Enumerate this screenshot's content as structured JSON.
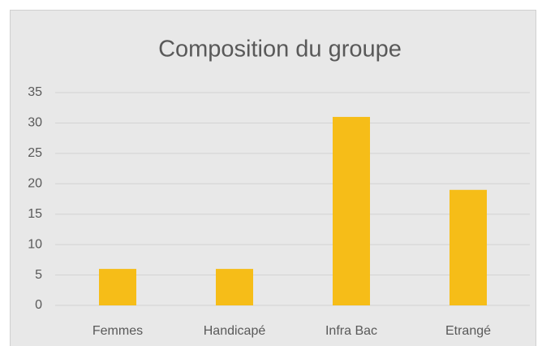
{
  "chart_data": {
    "type": "bar",
    "title": "Composition du groupe",
    "categories": [
      "Femmes",
      "Handicapé",
      "Infra Bac",
      "Etrangé"
    ],
    "values": [
      6,
      6,
      31,
      19
    ],
    "color": "#f6bd18",
    "ylim": [
      0,
      35
    ],
    "yticks": [
      0,
      5,
      10,
      15,
      20,
      25,
      30,
      35
    ],
    "grid": true
  }
}
